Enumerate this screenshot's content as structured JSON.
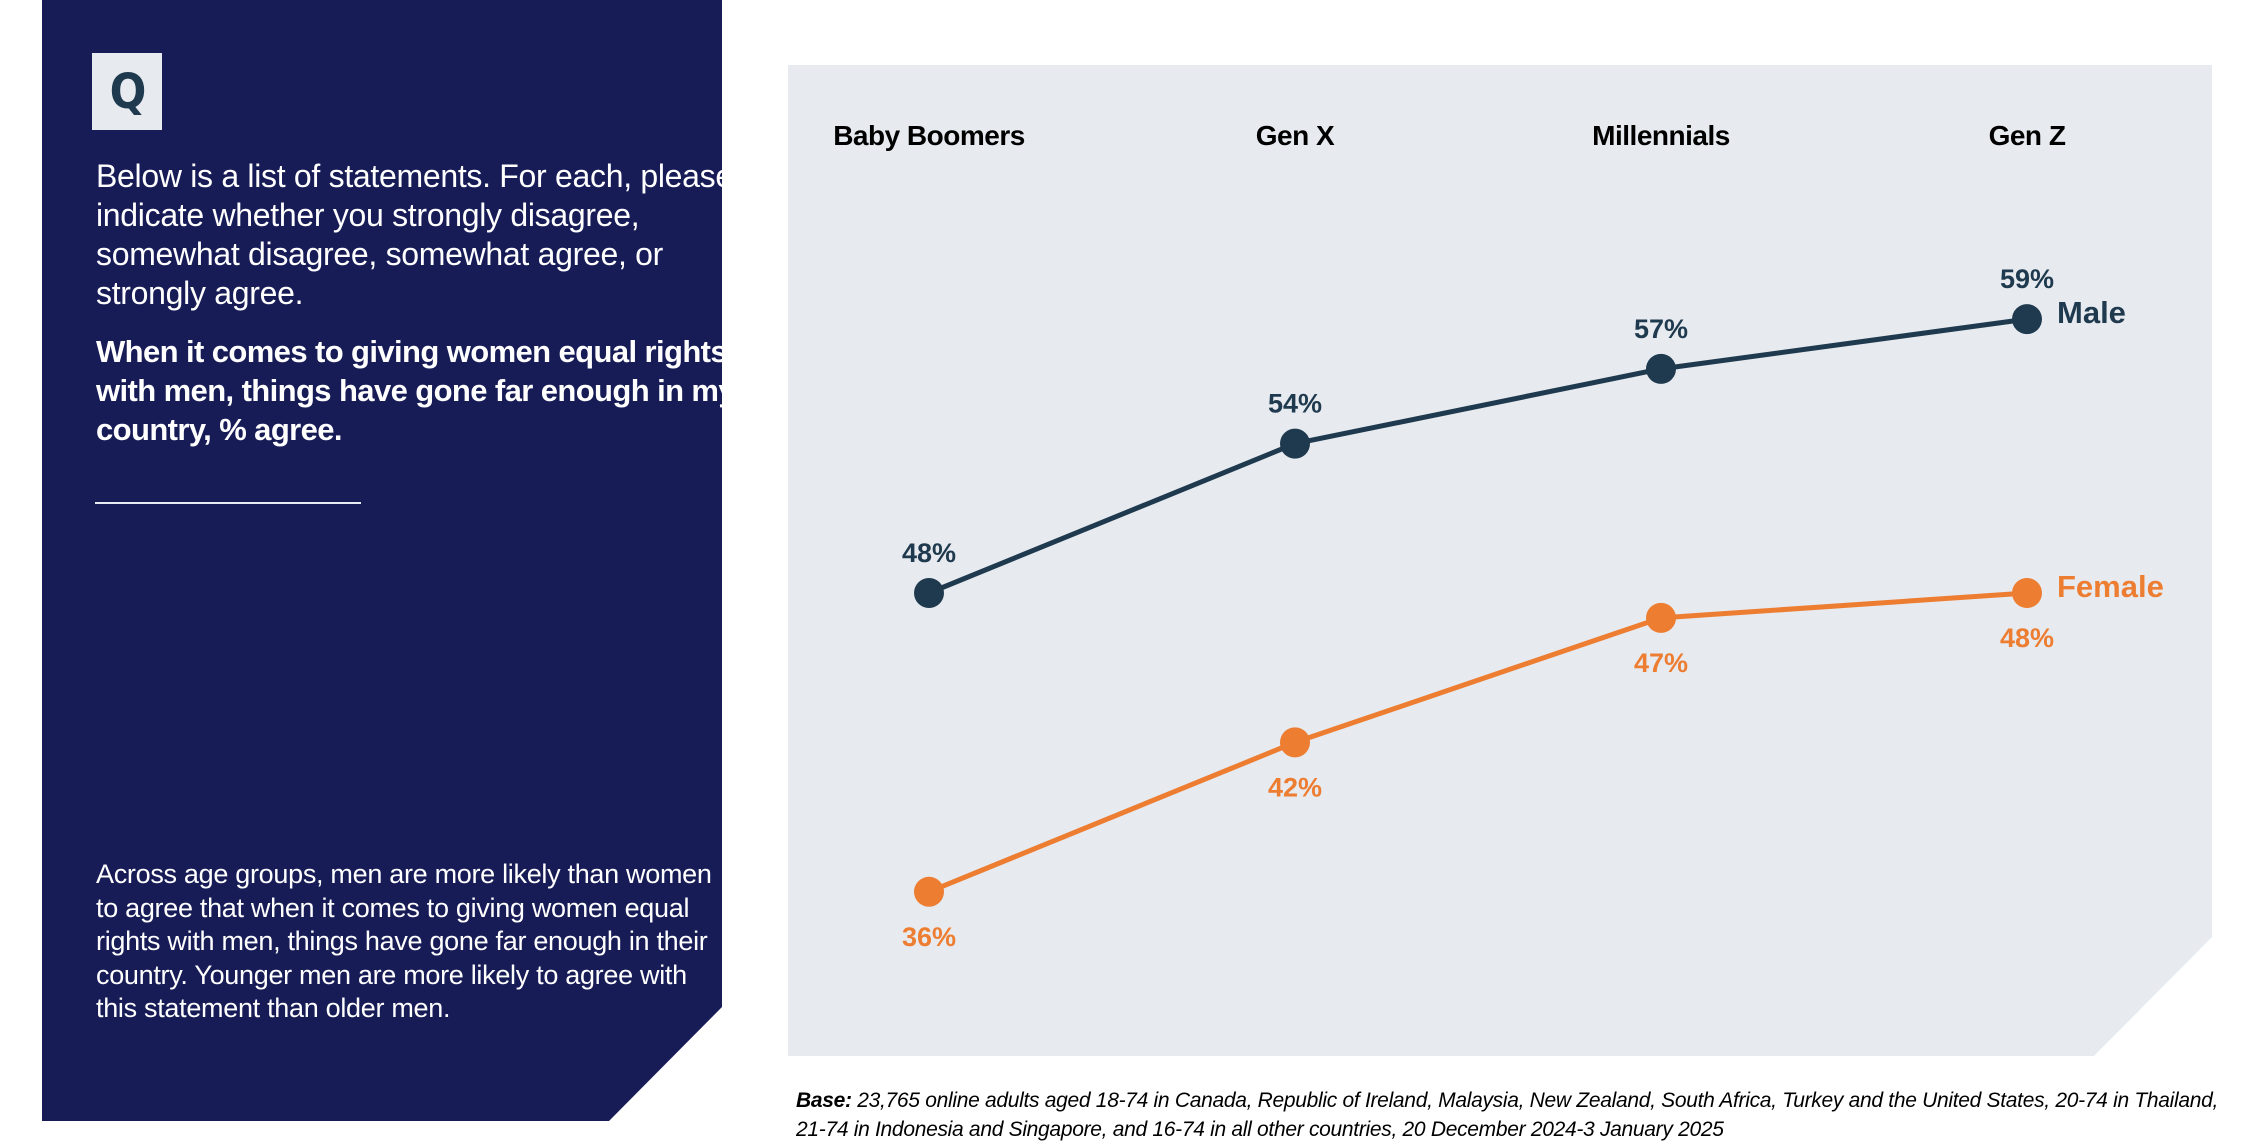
{
  "left_panel": {
    "badge_icon": "Q",
    "question": "Below is a list of statements. For each, please indicate whether you strongly disagree, somewhat disagree, somewhat agree, or strongly agree.",
    "statement": "When it comes to giving women equal rights with men, things have gone far enough in my country, % agree.",
    "summary": "Across age groups, men are more likely than women to agree that when it comes to giving women equal rights with men, things have gone far enough in their country. Younger men are more likely to agree with this statement than older men."
  },
  "footnote": {
    "label": "Base:",
    "text": " 23,765 online adults aged 18-74 in Canada, Republic of Ireland, Malaysia, New Zealand, South Africa, Turkey and the United States, 20-74 in Thailand, 21-74 in Indonesia and Singapore, and 16-74 in all other countries, 20 December 2024-3 January 2025"
  },
  "colors": {
    "panel_navy": "#171c57",
    "chart_background": "#e7eaef",
    "male": "#1f3a4e",
    "female": "#ed7d31"
  },
  "chart_data": {
    "type": "line",
    "title": "When it comes to giving women equal rights with men, things have gone far enough in my country, % agree.",
    "xlabel": "",
    "ylabel": "% agree",
    "categories": [
      "Baby Boomers",
      "Gen X",
      "Millennials",
      "Gen Z"
    ],
    "category_position": "top",
    "grid": false,
    "legend": "inline-right",
    "series": [
      {
        "name": "Male",
        "color": "#1f3a4e",
        "values": [
          48,
          54,
          57,
          59
        ],
        "labels": [
          "48%",
          "54%",
          "57%",
          "59%"
        ],
        "label_position": "above"
      },
      {
        "name": "Female",
        "color": "#ed7d31",
        "values": [
          36,
          42,
          47,
          48
        ],
        "labels": [
          "36%",
          "42%",
          "47%",
          "48%"
        ],
        "label_position": "below"
      }
    ]
  }
}
